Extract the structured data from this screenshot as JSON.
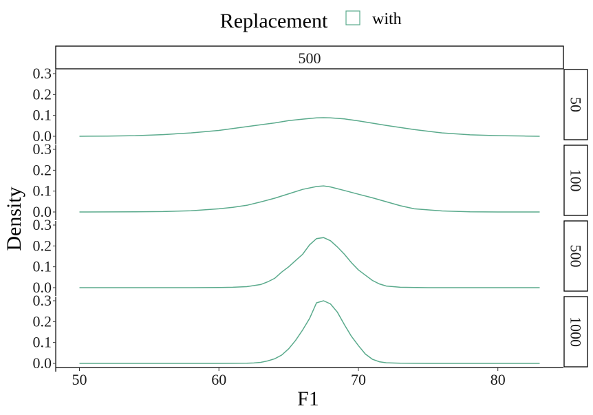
{
  "chart_data": {
    "type": "line",
    "legend": {
      "title": "Replacement",
      "entries": [
        {
          "label": "with",
          "color": "#5aaa8c"
        }
      ],
      "position": "top"
    },
    "xlabel": "F1",
    "ylabel": "Density",
    "column_strip": "500",
    "xlim": [
      48.3,
      84.7
    ],
    "x_ticks": [
      50,
      60,
      70,
      80
    ],
    "x_tick_labels": [
      "50",
      "60",
      "70",
      "80"
    ],
    "ylim": [
      0,
      0.32
    ],
    "y_ticks": [
      0,
      0.1,
      0.2,
      0.3
    ],
    "y_tick_labels": [
      "0.0",
      "0.1",
      "0.2",
      "0.3"
    ],
    "panels": [
      {
        "label": "50",
        "series": [
          {
            "name": "with",
            "color": "#5aaa8c",
            "x": [
              50,
              52,
              54,
              56,
              58,
              60,
              62,
              64,
              65,
              66,
              67,
              67.5,
              68,
              69,
              70,
              72,
              74,
              76,
              78,
              80,
              82,
              83
            ],
            "y": [
              0,
              0.001,
              0.003,
              0.008,
              0.016,
              0.028,
              0.046,
              0.064,
              0.075,
              0.082,
              0.088,
              0.089,
              0.088,
              0.083,
              0.074,
              0.052,
              0.032,
              0.016,
              0.007,
              0.003,
              0.001,
              0
            ]
          }
        ]
      },
      {
        "label": "100",
        "series": [
          {
            "name": "with",
            "color": "#5aaa8c",
            "x": [
              50,
              54,
              56,
              58,
              60,
              61,
              62,
              63,
              64,
              65,
              66,
              67,
              67.5,
              68,
              69,
              70,
              71,
              72,
              73,
              74,
              76,
              78,
              80,
              83
            ],
            "y": [
              0,
              0.001,
              0.002,
              0.006,
              0.015,
              0.022,
              0.032,
              0.048,
              0.066,
              0.087,
              0.108,
              0.122,
              0.125,
              0.12,
              0.103,
              0.085,
              0.068,
              0.049,
              0.03,
              0.015,
              0.005,
              0.001,
              0,
              0
            ]
          }
        ]
      },
      {
        "label": "500",
        "series": [
          {
            "name": "with",
            "color": "#5aaa8c",
            "x": [
              50,
              58,
              60,
              61,
              62,
              63,
              63.5,
              64,
              64.5,
              65,
              65.5,
              66,
              66.5,
              67,
              67.5,
              68,
              68.5,
              69,
              69.5,
              70,
              70.5,
              71,
              71.5,
              72,
              73,
              75,
              83
            ],
            "y": [
              0,
              0,
              0.001,
              0.002,
              0.005,
              0.015,
              0.028,
              0.045,
              0.075,
              0.1,
              0.13,
              0.16,
              0.205,
              0.235,
              0.24,
              0.225,
              0.195,
              0.16,
              0.12,
              0.085,
              0.06,
              0.035,
              0.018,
              0.008,
              0.002,
              0,
              0
            ]
          }
        ]
      },
      {
        "label": "1000",
        "series": [
          {
            "name": "with",
            "color": "#5aaa8c",
            "x": [
              50,
              60,
              62,
              62.5,
              63,
              63.5,
              64,
              64.5,
              65,
              65.5,
              66,
              66.5,
              67,
              67.5,
              68,
              68.5,
              69,
              69.5,
              70,
              70.5,
              71,
              71.5,
              72,
              73,
              75,
              83
            ],
            "y": [
              0,
              0,
              0.001,
              0.002,
              0.005,
              0.012,
              0.022,
              0.04,
              0.07,
              0.11,
              0.16,
              0.215,
              0.29,
              0.3,
              0.285,
              0.245,
              0.185,
              0.13,
              0.085,
              0.045,
              0.02,
              0.008,
              0.003,
              0.001,
              0,
              0
            ]
          }
        ]
      }
    ]
  }
}
